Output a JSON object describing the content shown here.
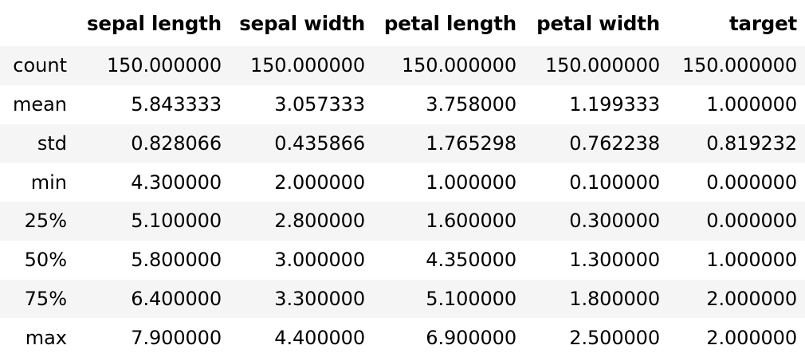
{
  "table": {
    "index_header": "",
    "columns": [
      "sepal length",
      "sepal width",
      "petal length",
      "petal width",
      "target"
    ],
    "rows": [
      {
        "label": "count",
        "values": [
          "150.000000",
          "150.000000",
          "150.000000",
          "150.000000",
          "150.000000"
        ]
      },
      {
        "label": "mean",
        "values": [
          "5.843333",
          "3.057333",
          "3.758000",
          "1.199333",
          "1.000000"
        ]
      },
      {
        "label": "std",
        "values": [
          "0.828066",
          "0.435866",
          "1.765298",
          "0.762238",
          "0.819232"
        ]
      },
      {
        "label": "min",
        "values": [
          "4.300000",
          "2.000000",
          "1.000000",
          "0.100000",
          "0.000000"
        ]
      },
      {
        "label": "25%",
        "values": [
          "5.100000",
          "2.800000",
          "1.600000",
          "0.300000",
          "0.000000"
        ]
      },
      {
        "label": "50%",
        "values": [
          "5.800000",
          "3.000000",
          "4.350000",
          "1.300000",
          "1.000000"
        ]
      },
      {
        "label": "75%",
        "values": [
          "6.400000",
          "3.300000",
          "5.100000",
          "1.800000",
          "2.000000"
        ]
      },
      {
        "label": "max",
        "values": [
          "7.900000",
          "4.400000",
          "6.900000",
          "2.500000",
          "2.000000"
        ]
      }
    ]
  },
  "colors": {
    "stripe": "#f5f5f5",
    "background": "#ffffff",
    "text": "#000000"
  }
}
